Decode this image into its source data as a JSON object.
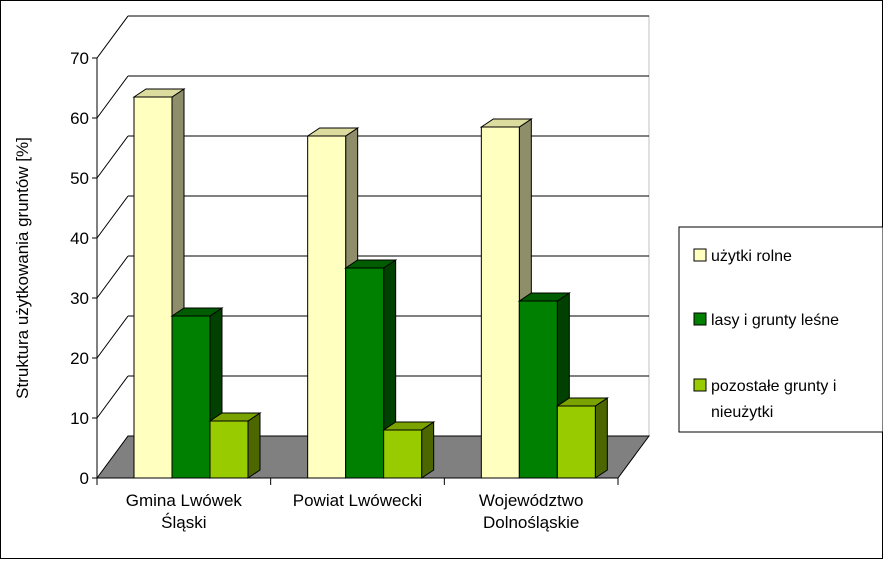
{
  "chart_data": {
    "type": "bar",
    "title": "",
    "xlabel": "",
    "ylabel": "Struktura użytkowania gruntów [%]",
    "ylim": [
      0,
      70
    ],
    "yticks": [
      "0",
      "10",
      "20",
      "30",
      "40",
      "50",
      "60",
      "70"
    ],
    "categories": [
      [
        "Gmina Lwówek",
        "Śląski"
      ],
      [
        "Powiat Lwówecki"
      ],
      [
        "Województwo",
        "Dolnośląskie"
      ]
    ],
    "series": [
      {
        "name": "użytki rolne",
        "values": [
          63.5,
          57.0,
          58.5
        ]
      },
      {
        "name": "lasy i grunty leśne",
        "values": [
          27.0,
          35.0,
          29.5
        ]
      },
      {
        "name": "pozostałe grunty i nieużytki",
        "values": [
          9.5,
          8.0,
          12.0
        ]
      }
    ],
    "legend": {
      "position": "right",
      "entries": [
        [
          "użytki rolne"
        ],
        [
          "lasy i grunty leśne"
        ],
        [
          "pozostałe grunty i",
          "nieużytki"
        ]
      ]
    },
    "colors": {
      "series": [
        "#FFFFC0",
        "#008000",
        "#99CC00"
      ],
      "side": [
        "#8E8E6A",
        "#004000",
        "#4C6600"
      ],
      "top": [
        "#DCDC9E",
        "#005C00",
        "#7AA300"
      ],
      "floor": "#808080",
      "grid": "#000000"
    },
    "grid": true,
    "style": "3d-clustered-bar"
  }
}
